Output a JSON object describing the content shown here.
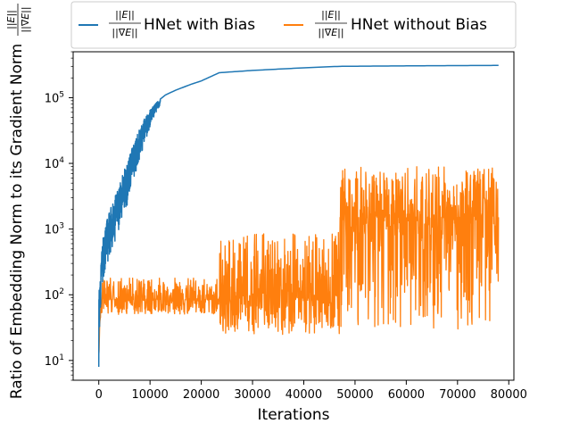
{
  "chart_data": {
    "type": "line",
    "xlabel": "Iterations",
    "ylabel": "Ratio of Embedding Norm to its Gradient Norm",
    "ylabel_fraction": {
      "numerator": "||E||",
      "denominator": "||∇E||"
    },
    "x_scale": "linear",
    "y_scale": "log",
    "xlim": [
      -5000,
      81000
    ],
    "ylim": [
      5,
      500000
    ],
    "x_ticks": [
      0,
      10000,
      20000,
      30000,
      40000,
      50000,
      60000,
      70000,
      80000
    ],
    "x_tick_labels": [
      "0",
      "10000",
      "20000",
      "30000",
      "40000",
      "50000",
      "60000",
      "70000",
      "80000"
    ],
    "y_ticks": [
      10,
      100,
      1000,
      10000,
      100000
    ],
    "y_tick_labels": [
      {
        "base": "10",
        "exp": "1"
      },
      {
        "base": "10",
        "exp": "2"
      },
      {
        "base": "10",
        "exp": "3"
      },
      {
        "base": "10",
        "exp": "4"
      },
      {
        "base": "10",
        "exp": "5"
      }
    ],
    "grid": false,
    "legend_placement": "top, above plot",
    "series": [
      {
        "name": "HNet with Bias",
        "name_fraction": {
          "numerator": "||E||",
          "denominator": "||∇E||"
        },
        "color": "#1f77b4",
        "noisy_until": 12000,
        "trend": [
          [
            0,
            150
          ],
          [
            1000,
            1000
          ],
          [
            2000,
            1800
          ],
          [
            3000,
            3000
          ],
          [
            4000,
            5000
          ],
          [
            5000,
            8000
          ],
          [
            6000,
            14000
          ],
          [
            7000,
            22000
          ],
          [
            8000,
            35000
          ],
          [
            9000,
            50000
          ],
          [
            10000,
            65000
          ],
          [
            11000,
            80000
          ],
          [
            12000,
            95000
          ],
          [
            13000,
            110000
          ],
          [
            15000,
            130000
          ],
          [
            18000,
            160000
          ],
          [
            20000,
            180000
          ],
          [
            23500,
            240000
          ],
          [
            30000,
            260000
          ],
          [
            40000,
            285000
          ],
          [
            47000,
            300000
          ],
          [
            60000,
            305000
          ],
          [
            70000,
            308000
          ],
          [
            78000,
            310000
          ]
        ],
        "noise_band_low": [
          [
            0,
            8
          ],
          [
            500,
            60
          ],
          [
            1000,
            100
          ],
          [
            2000,
            200
          ],
          [
            3000,
            350
          ],
          [
            4000,
            500
          ],
          [
            5000,
            900
          ],
          [
            6000,
            2000
          ],
          [
            7000,
            4000
          ],
          [
            8000,
            8000
          ],
          [
            9000,
            15000
          ],
          [
            10000,
            30000
          ],
          [
            11000,
            50000
          ],
          [
            12000,
            70000
          ]
        ]
      },
      {
        "name": "HNet without Bias",
        "name_fraction": {
          "numerator": "||E||",
          "denominator": "||∇E||"
        },
        "color": "#ff7f0e",
        "segments": [
          {
            "x_start": 0,
            "x_end": 23500,
            "median": 85,
            "low": 50,
            "high": 180
          },
          {
            "x_start": 23500,
            "x_end": 47000,
            "median": 100,
            "low": 25,
            "high": 900
          },
          {
            "x_start": 47000,
            "x_end": 78000,
            "median": 1500,
            "low": 30,
            "high": 9000
          }
        ],
        "start_value": 12
      }
    ]
  }
}
